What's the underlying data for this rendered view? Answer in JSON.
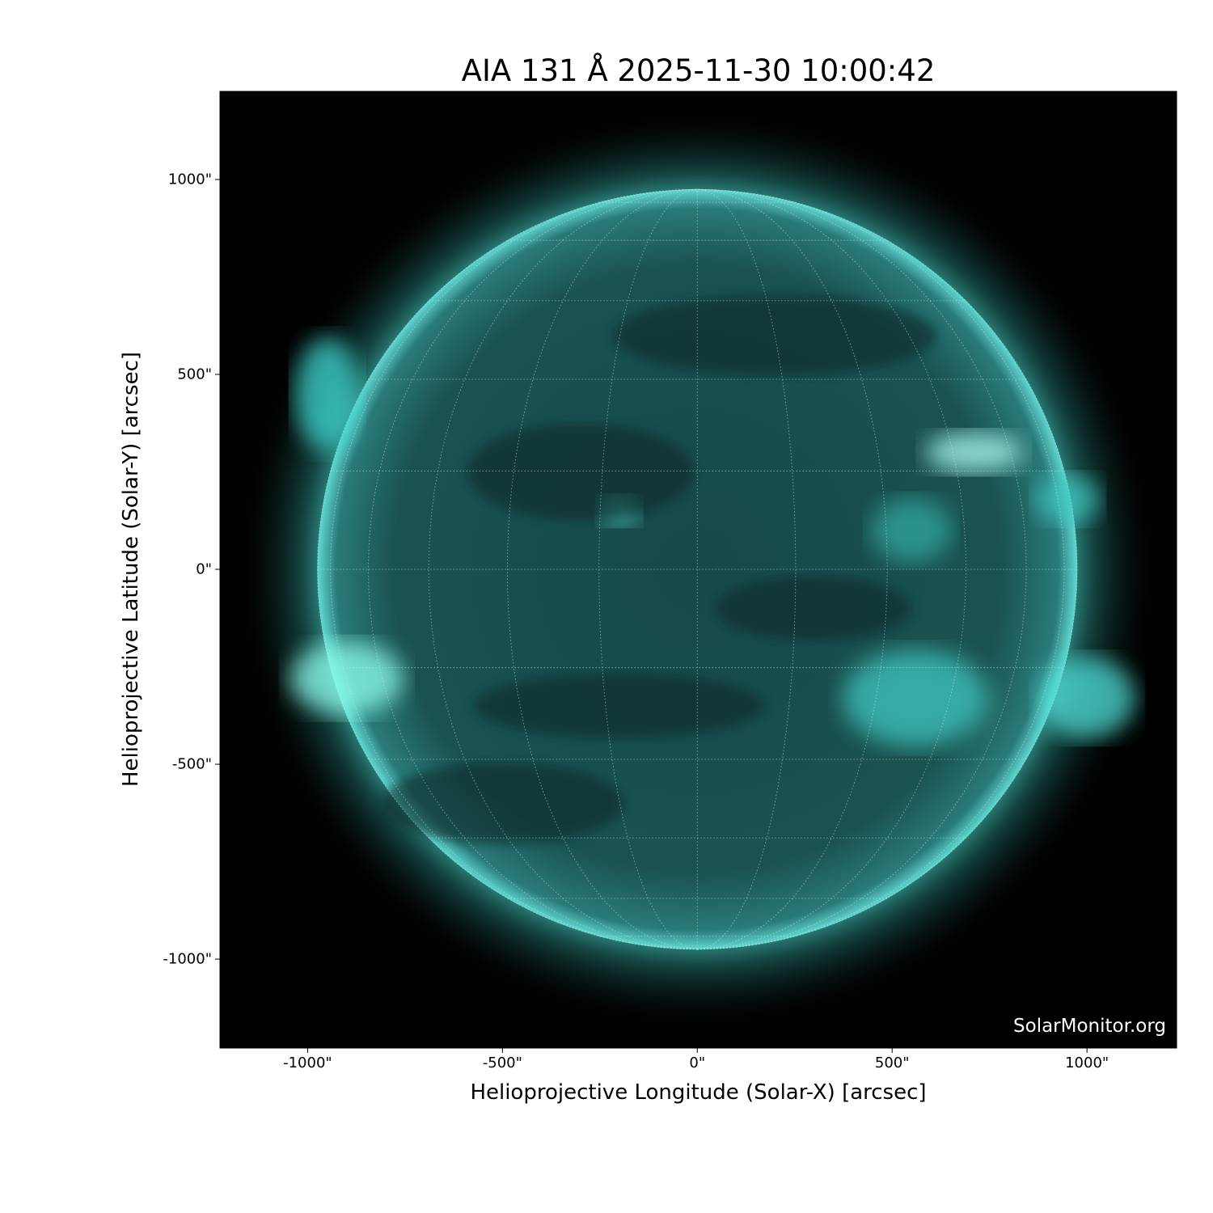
{
  "title": "AIA 131 Å 2025-11-30 10:00:42",
  "watermark": "SolarMonitor.org",
  "chart_data": {
    "type": "heatmap",
    "title": "AIA 131 Å 2025-11-30 10:00:42",
    "xlabel": "Helioprojective Longitude (Solar-X) [arcsec]",
    "ylabel": "Helioprojective Latitude (Solar-Y) [arcsec]",
    "xlim": [
      -1225,
      1230
    ],
    "ylim": [
      -1228,
      1226
    ],
    "xticks": [
      "-1000\"",
      "-500\"",
      "0\"",
      "500\"",
      "1000\""
    ],
    "xtick_values": [
      -1000,
      -500,
      0,
      500,
      1000
    ],
    "yticks": [
      "1000\"",
      "500\"",
      "0\"",
      "-500\"",
      "-1000\""
    ],
    "ytick_values": [
      1000,
      500,
      0,
      -500,
      -1000
    ],
    "solar_radius_arcsec": 975,
    "grid": "heliographic, dotted, 15° spacing",
    "colormap": [
      "#000000",
      "#0a3a3a",
      "#1f8a8a",
      "#40ffee",
      "#e0ffff"
    ]
  }
}
